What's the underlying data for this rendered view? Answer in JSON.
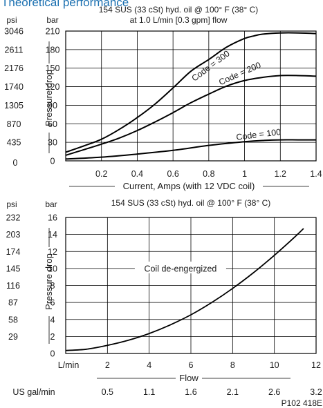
{
  "page_title": "Theoretical performance",
  "figure_code": "P102 418E",
  "chart_data": [
    {
      "type": "line",
      "title": "154 SUS (33 cSt) hyd. oil @ 100° F (38° C)",
      "subtitle": "at 1.0 L/min [0.3 gpm] flow",
      "xlabel": "Current, Amps (with 12 VDC coil)",
      "ylabel": "Pressure drop",
      "y_unit_primary": "bar",
      "y_unit_secondary": "psi",
      "xlim": [
        0,
        1.4
      ],
      "ylim": [
        0,
        210
      ],
      "x_ticks": [
        "0.2",
        "0.4",
        "0.6",
        "0.8",
        "1",
        "1.2",
        "1.4"
      ],
      "x_tick_values": [
        0.2,
        0.4,
        0.6,
        0.8,
        1.0,
        1.2,
        1.4
      ],
      "y_ticks": [
        "0",
        "30",
        "60",
        "90",
        "120",
        "150",
        "180",
        "210"
      ],
      "y_tick_values": [
        0,
        30,
        60,
        90,
        120,
        150,
        180,
        210
      ],
      "y2_ticks": [
        "435",
        "870",
        "1305",
        "1740",
        "2176",
        "2611",
        "3046"
      ],
      "grid": true,
      "series": [
        {
          "name": "Code = 300",
          "x": [
            0,
            0.1,
            0.2,
            0.3,
            0.4,
            0.5,
            0.6,
            0.7,
            0.8,
            0.9,
            1.0,
            1.05,
            1.1,
            1.2,
            1.3,
            1.4
          ],
          "y": [
            14,
            24,
            35,
            51,
            70,
            92,
            118,
            145,
            164,
            184,
            198,
            202,
            205,
            207,
            207,
            206
          ]
        },
        {
          "name": "Code = 200",
          "x": [
            0,
            0.1,
            0.2,
            0.3,
            0.4,
            0.5,
            0.6,
            0.7,
            0.8,
            0.9,
            1.0,
            1.1,
            1.2,
            1.3,
            1.4
          ],
          "y": [
            9,
            18,
            27,
            37,
            49,
            63,
            78,
            94,
            108,
            121,
            130,
            135,
            138,
            138,
            137
          ]
        },
        {
          "name": "Code = 100",
          "x": [
            0,
            0.2,
            0.4,
            0.6,
            0.8,
            1.0,
            1.1,
            1.2,
            1.3,
            1.4
          ],
          "y": [
            3,
            6,
            11,
            17,
            25,
            31,
            33,
            34,
            34,
            34
          ]
        }
      ]
    },
    {
      "type": "line",
      "title": "154 SUS (33 cSt) hyd. oil @ 100° F (38° C)",
      "xlabel": "Flow",
      "ylabel": "Pressure drop",
      "y_unit_primary": "bar",
      "y_unit_secondary": "psi",
      "x_unit_primary": "L/min",
      "x_unit_secondary": "US gal/min",
      "xlim": [
        0,
        12
      ],
      "ylim": [
        0,
        16
      ],
      "x_ticks": [
        "2",
        "4",
        "6",
        "8",
        "10",
        "12"
      ],
      "x_tick_values": [
        2,
        4,
        6,
        8,
        10,
        12
      ],
      "x2_ticks": [
        "0.5",
        "1.1",
        "1.6",
        "2.1",
        "2.6",
        "3.2"
      ],
      "y_ticks": [
        "0",
        "2",
        "4",
        "6",
        "8",
        "10",
        "12",
        "14",
        "16"
      ],
      "y_tick_values": [
        0,
        2,
        4,
        6,
        8,
        10,
        12,
        14,
        16
      ],
      "y2_ticks": [
        "29",
        "58",
        "87",
        "116",
        "145",
        "174",
        "203",
        "232"
      ],
      "grid": true,
      "series": [
        {
          "name": "Coil de-engergized",
          "x": [
            0,
            1,
            2,
            3,
            4,
            5,
            6,
            7,
            8,
            9,
            10,
            11,
            11.4
          ],
          "y": [
            0.35,
            0.5,
            0.95,
            1.55,
            2.35,
            3.35,
            4.55,
            6.0,
            7.65,
            9.5,
            11.55,
            13.75,
            14.7
          ]
        }
      ]
    }
  ]
}
